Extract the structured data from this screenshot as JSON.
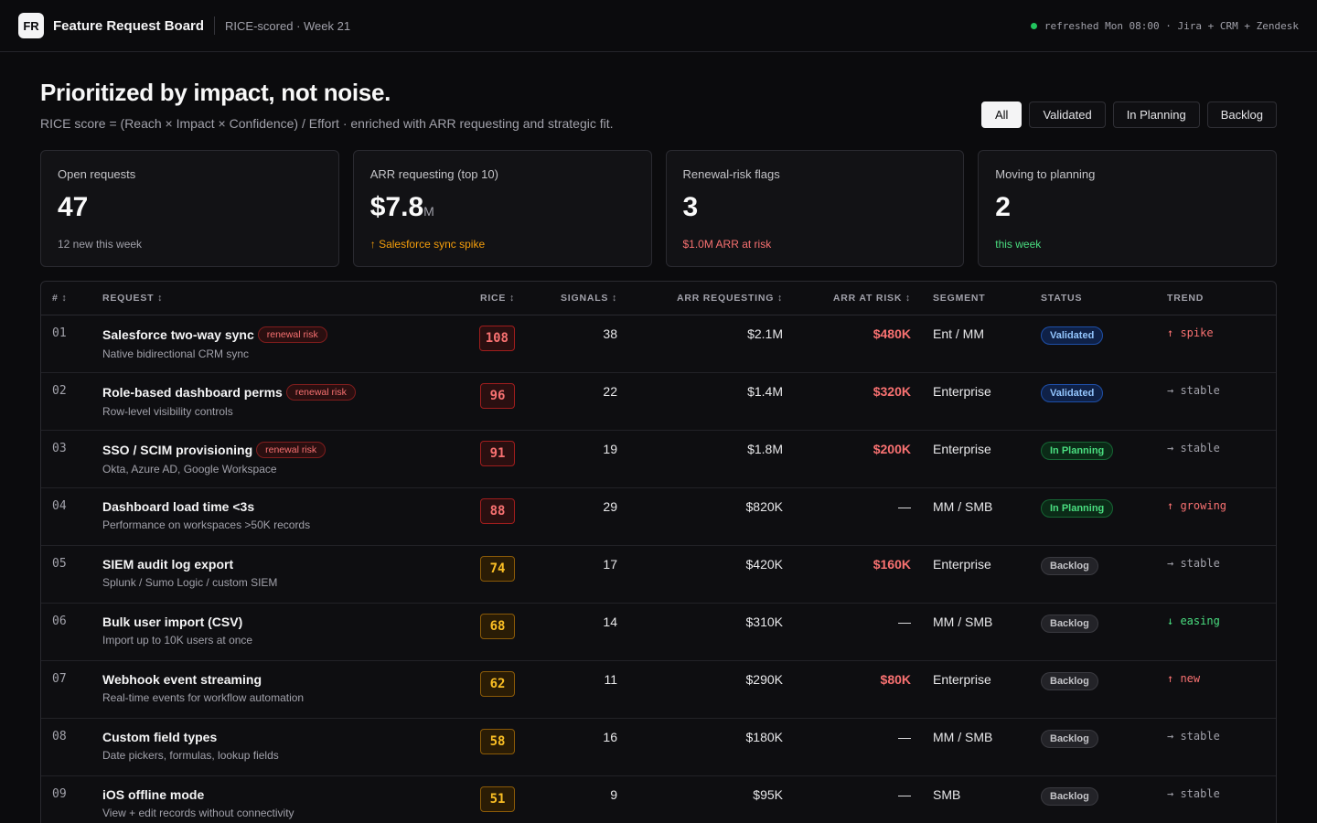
{
  "header": {
    "logo": "FR",
    "title": "Feature Request Board",
    "subtitle": "RICE-scored · Week 21",
    "refresh": "refreshed Mon 08:00 · Jira + CRM + Zendesk"
  },
  "hero": {
    "title": "Prioritized by impact, not noise.",
    "subtitle": "RICE score = (Reach × Impact × Confidence) / Effort · enriched with ARR requesting and strategic fit."
  },
  "filters": [
    "All",
    "Validated",
    "In Planning",
    "Backlog"
  ],
  "kpis": [
    {
      "label": "Open requests",
      "value": "47",
      "unit": "",
      "note": "12 new this week"
    },
    {
      "label": "ARR requesting (top 10)",
      "value": "$7.8",
      "unit": "M",
      "note": "↑ Salesforce sync spike"
    },
    {
      "label": "Renewal-risk flags",
      "value": "3",
      "unit": "",
      "note": "$1.0M ARR at risk"
    },
    {
      "label": "Moving to planning",
      "value": "2",
      "unit": "",
      "note": "this week"
    }
  ],
  "table": {
    "columns": [
      "# ↕",
      "REQUEST ↕",
      "RICE ↕",
      "SIGNALS ↕",
      "ARR REQUESTING ↕",
      "ARR AT RISK ↕",
      "SEGMENT",
      "STATUS",
      "TREND"
    ],
    "rows": [
      {
        "num": "01",
        "title": "Salesforce two-way sync",
        "tag": "renewal risk",
        "sub": "Native bidirectional CRM sync",
        "rice": "108",
        "signals": "38",
        "arr": "$2.1M",
        "risk": "$480K",
        "segment": "Ent / MM",
        "status": "Validated",
        "trend": "↑ spike"
      },
      {
        "num": "02",
        "title": "Role-based dashboard perms",
        "tag": "renewal risk",
        "sub": "Row-level visibility controls",
        "rice": "96",
        "signals": "22",
        "arr": "$1.4M",
        "risk": "$320K",
        "segment": "Enterprise",
        "status": "Validated",
        "trend": "→ stable"
      },
      {
        "num": "03",
        "title": "SSO / SCIM provisioning",
        "tag": "renewal risk",
        "sub": "Okta, Azure AD, Google Workspace",
        "rice": "91",
        "signals": "19",
        "arr": "$1.8M",
        "risk": "$200K",
        "segment": "Enterprise",
        "status": "In Planning",
        "trend": "→ stable"
      },
      {
        "num": "04",
        "title": "Dashboard load time <3s",
        "tag": "",
        "sub": "Performance on workspaces >50K records",
        "rice": "88",
        "signals": "29",
        "arr": "$820K",
        "risk": "—",
        "segment": "MM / SMB",
        "status": "In Planning",
        "trend": "↑ growing"
      },
      {
        "num": "05",
        "title": "SIEM audit log export",
        "tag": "",
        "sub": "Splunk / Sumo Logic / custom SIEM",
        "rice": "74",
        "signals": "17",
        "arr": "$420K",
        "risk": "$160K",
        "segment": "Enterprise",
        "status": "Backlog",
        "trend": "→ stable"
      },
      {
        "num": "06",
        "title": "Bulk user import (CSV)",
        "tag": "",
        "sub": "Import up to 10K users at once",
        "rice": "68",
        "signals": "14",
        "arr": "$310K",
        "risk": "—",
        "segment": "MM / SMB",
        "status": "Backlog",
        "trend": "↓ easing"
      },
      {
        "num": "07",
        "title": "Webhook event streaming",
        "tag": "",
        "sub": "Real-time events for workflow automation",
        "rice": "62",
        "signals": "11",
        "arr": "$290K",
        "risk": "$80K",
        "segment": "Enterprise",
        "status": "Backlog",
        "trend": "↑ new"
      },
      {
        "num": "08",
        "title": "Custom field types",
        "tag": "",
        "sub": "Date pickers, formulas, lookup fields",
        "rice": "58",
        "signals": "16",
        "arr": "$180K",
        "risk": "—",
        "segment": "MM / SMB",
        "status": "Backlog",
        "trend": "→ stable"
      },
      {
        "num": "09",
        "title": "iOS offline mode",
        "tag": "",
        "sub": "View + edit records without connectivity",
        "rice": "51",
        "signals": "9",
        "arr": "$95K",
        "risk": "—",
        "segment": "SMB",
        "status": "Backlog",
        "trend": "→ stable"
      }
    ]
  },
  "colors": {
    "hot": "#f87171",
    "warm": "#fbbf24",
    "positive": "#4ade80",
    "accent": "#93c5fd"
  }
}
